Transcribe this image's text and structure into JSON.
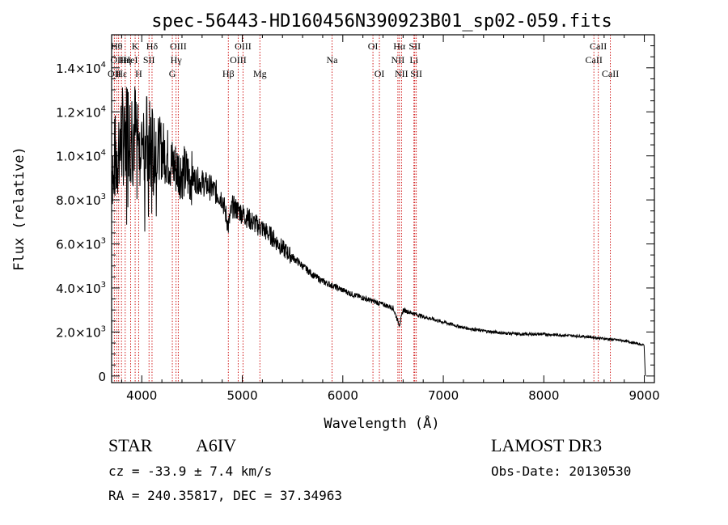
{
  "chart_data": {
    "type": "line",
    "title": "spec-56443-HD160456N390923B01_sp02-059.fits",
    "xlabel": "Wavelength (Å)",
    "ylabel": "Flux (relative)",
    "xlim": [
      3700,
      9100
    ],
    "ylim": [
      -300,
      15500
    ],
    "x_ticks": [
      4000,
      5000,
      6000,
      7000,
      8000,
      9000
    ],
    "y_ticks": [
      {
        "value": 0,
        "mantissa": "0",
        "exp": ""
      },
      {
        "value": 2000,
        "mantissa": "2.0×10",
        "exp": "3"
      },
      {
        "value": 4000,
        "mantissa": "4.0×10",
        "exp": "3"
      },
      {
        "value": 6000,
        "mantissa": "6.0×10",
        "exp": "3"
      },
      {
        "value": 8000,
        "mantissa": "8.0×10",
        "exp": "3"
      },
      {
        "value": 10000,
        "mantissa": "1.0×10",
        "exp": "4"
      },
      {
        "value": 12000,
        "mantissa": "1.2×10",
        "exp": "4"
      },
      {
        "value": 14000,
        "mantissa": "1.4×10",
        "exp": "4"
      }
    ],
    "series": [
      {
        "name": "flux",
        "x": [
          3700,
          3750,
          3800,
          3850,
          3900,
          3950,
          4000,
          4050,
          4100,
          4150,
          4200,
          4250,
          4300,
          4350,
          4400,
          4500,
          4600,
          4700,
          4800,
          4861,
          4900,
          5000,
          5100,
          5200,
          5300,
          5400,
          5500,
          5600,
          5700,
          5800,
          5900,
          6000,
          6100,
          6200,
          6300,
          6400,
          6500,
          6563,
          6600,
          6700,
          6800,
          7000,
          7200,
          7400,
          7600,
          7800,
          8000,
          8200,
          8400,
          8600,
          8800,
          9000,
          9010
        ],
        "y": [
          9500,
          10000,
          10800,
          11200,
          11400,
          11000,
          10900,
          10600,
          10200,
          10400,
          10300,
          10000,
          9600,
          9400,
          9300,
          9000,
          8800,
          8500,
          8100,
          6800,
          7700,
          7400,
          7000,
          6700,
          6300,
          5800,
          5400,
          5000,
          4600,
          4300,
          4100,
          3900,
          3700,
          3550,
          3400,
          3250,
          3100,
          2300,
          3000,
          2850,
          2700,
          2450,
          2200,
          2050,
          1950,
          1900,
          1900,
          1850,
          1800,
          1700,
          1600,
          1400,
          0
        ]
      }
    ],
    "lines": [
      {
        "wl": 3727,
        "label": "OII",
        "row": 3
      },
      {
        "wl": 3750,
        "label": "Hθ",
        "row": 1
      },
      {
        "wl": 3770,
        "label": "OIII",
        "row": 2
      },
      {
        "wl": 3798,
        "label": "Hε",
        "row": 3
      },
      {
        "wl": 3835,
        "label": "Hη",
        "row": 2
      },
      {
        "wl": 3889,
        "label": "HeI",
        "row": 2
      },
      {
        "wl": 3934,
        "label": "K",
        "row": 1
      },
      {
        "wl": 3969,
        "label": "H",
        "row": 3
      },
      {
        "wl": 4072,
        "label": "SII",
        "row": 2
      },
      {
        "wl": 4102,
        "label": "Hδ",
        "row": 1
      },
      {
        "wl": 4304,
        "label": "G",
        "row": 3
      },
      {
        "wl": 4341,
        "label": "Hγ",
        "row": 2
      },
      {
        "wl": 4363,
        "label": "OIII",
        "row": 1
      },
      {
        "wl": 4861,
        "label": "Hβ",
        "row": 3
      },
      {
        "wl": 4959,
        "label": "OIII",
        "row": 2
      },
      {
        "wl": 5007,
        "label": "OIII",
        "row": 1
      },
      {
        "wl": 5175,
        "label": "Mg",
        "row": 3
      },
      {
        "wl": 5893,
        "label": "Na",
        "row": 2
      },
      {
        "wl": 6300,
        "label": "OI",
        "row": 1
      },
      {
        "wl": 6364,
        "label": "OI",
        "row": 3
      },
      {
        "wl": 6548,
        "label": "NII",
        "row": 2
      },
      {
        "wl": 6563,
        "label": "Hα",
        "row": 1
      },
      {
        "wl": 6584,
        "label": "NII",
        "row": 3
      },
      {
        "wl": 6708,
        "label": "Li",
        "row": 2
      },
      {
        "wl": 6716,
        "label": "SII",
        "row": 1
      },
      {
        "wl": 6731,
        "label": "SII",
        "row": 3
      },
      {
        "wl": 8498,
        "label": "CaII",
        "row": 2
      },
      {
        "wl": 8542,
        "label": "CaII",
        "row": 1
      },
      {
        "wl": 8662,
        "label": "CaII",
        "row": 3
      }
    ]
  },
  "info": {
    "object_class": "STAR",
    "subclass": "A6IV",
    "cz": "cz = -33.9 ± 7.4 km/s",
    "coords": "RA = 240.35817, DEC =  37.34963",
    "survey": "LAMOST DR3",
    "obs_date": "Obs-Date: 20130530"
  },
  "colors": {
    "axis": "#000000",
    "spectrum": "#000000",
    "line_markers": "#cc0000",
    "background": "#ffffff"
  }
}
